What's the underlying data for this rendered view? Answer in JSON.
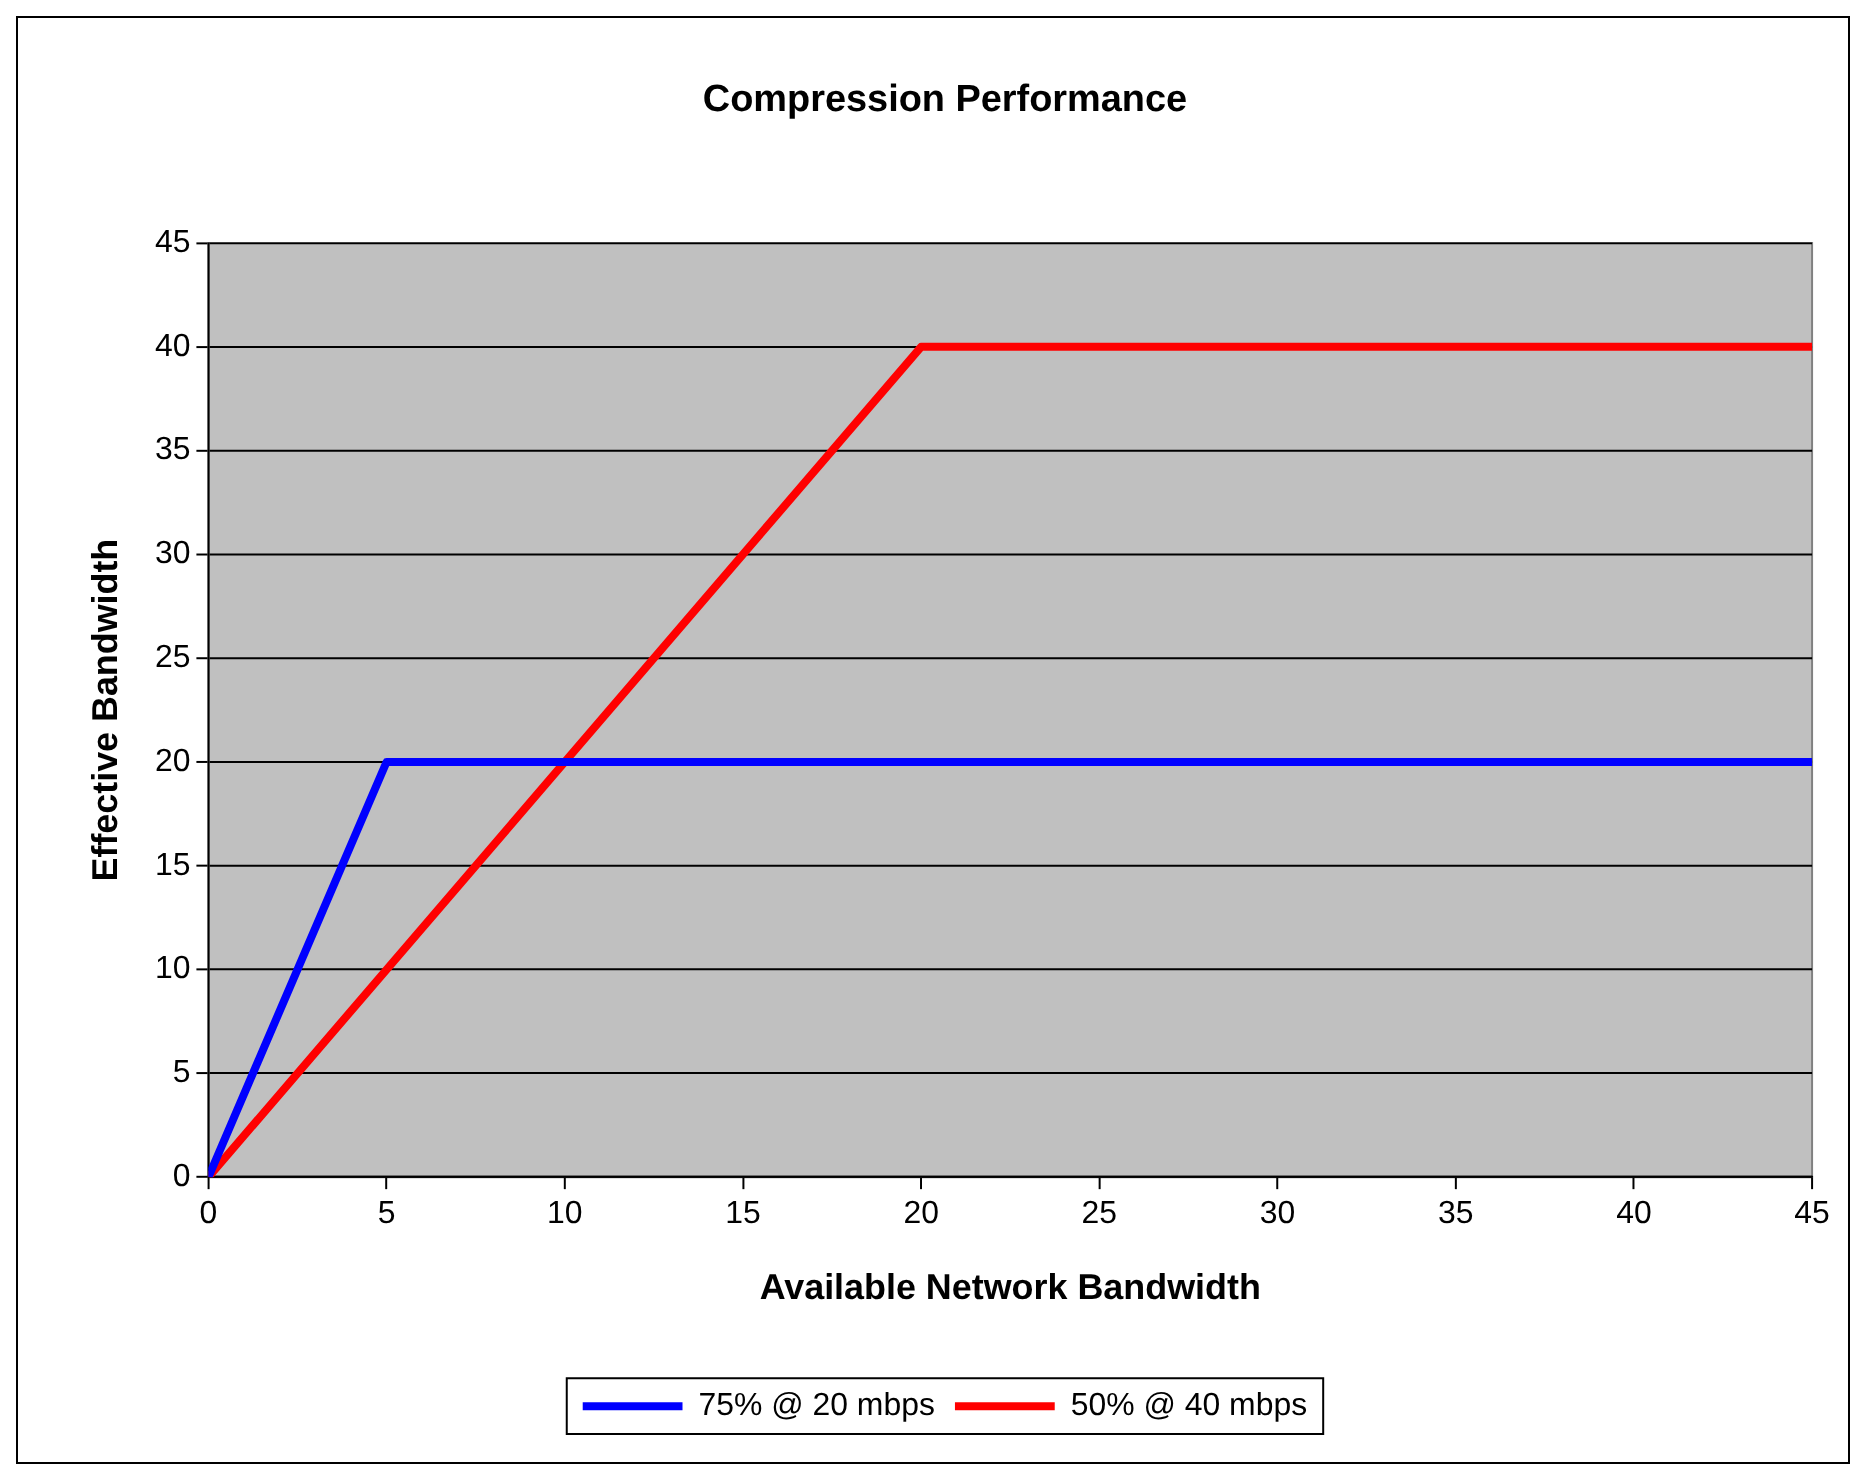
{
  "chart_data": {
    "type": "line",
    "title": "Compression Performance",
    "xlabel": "Available Network Bandwidth",
    "ylabel": "Effective Bandwidth",
    "series": [
      {
        "name": "75% @ 20 mbps",
        "color": "#0000ff",
        "x": [
          0,
          5,
          45
        ],
        "values": [
          0,
          20,
          20
        ]
      },
      {
        "name": "50% @ 40 mbps",
        "color": "#ff0000",
        "x": [
          0,
          20,
          45
        ],
        "values": [
          0,
          40,
          40
        ]
      }
    ],
    "xlim": [
      0,
      45
    ],
    "xticks": [
      0,
      5,
      10,
      15,
      20,
      25,
      30,
      35,
      40,
      45
    ],
    "ylim": [
      0,
      45
    ],
    "yticks": [
      0,
      5,
      10,
      15,
      20,
      25,
      30,
      35,
      40,
      45
    ],
    "grid": "y",
    "legend": "bottom",
    "marker": "none",
    "line_style": "solid"
  }
}
